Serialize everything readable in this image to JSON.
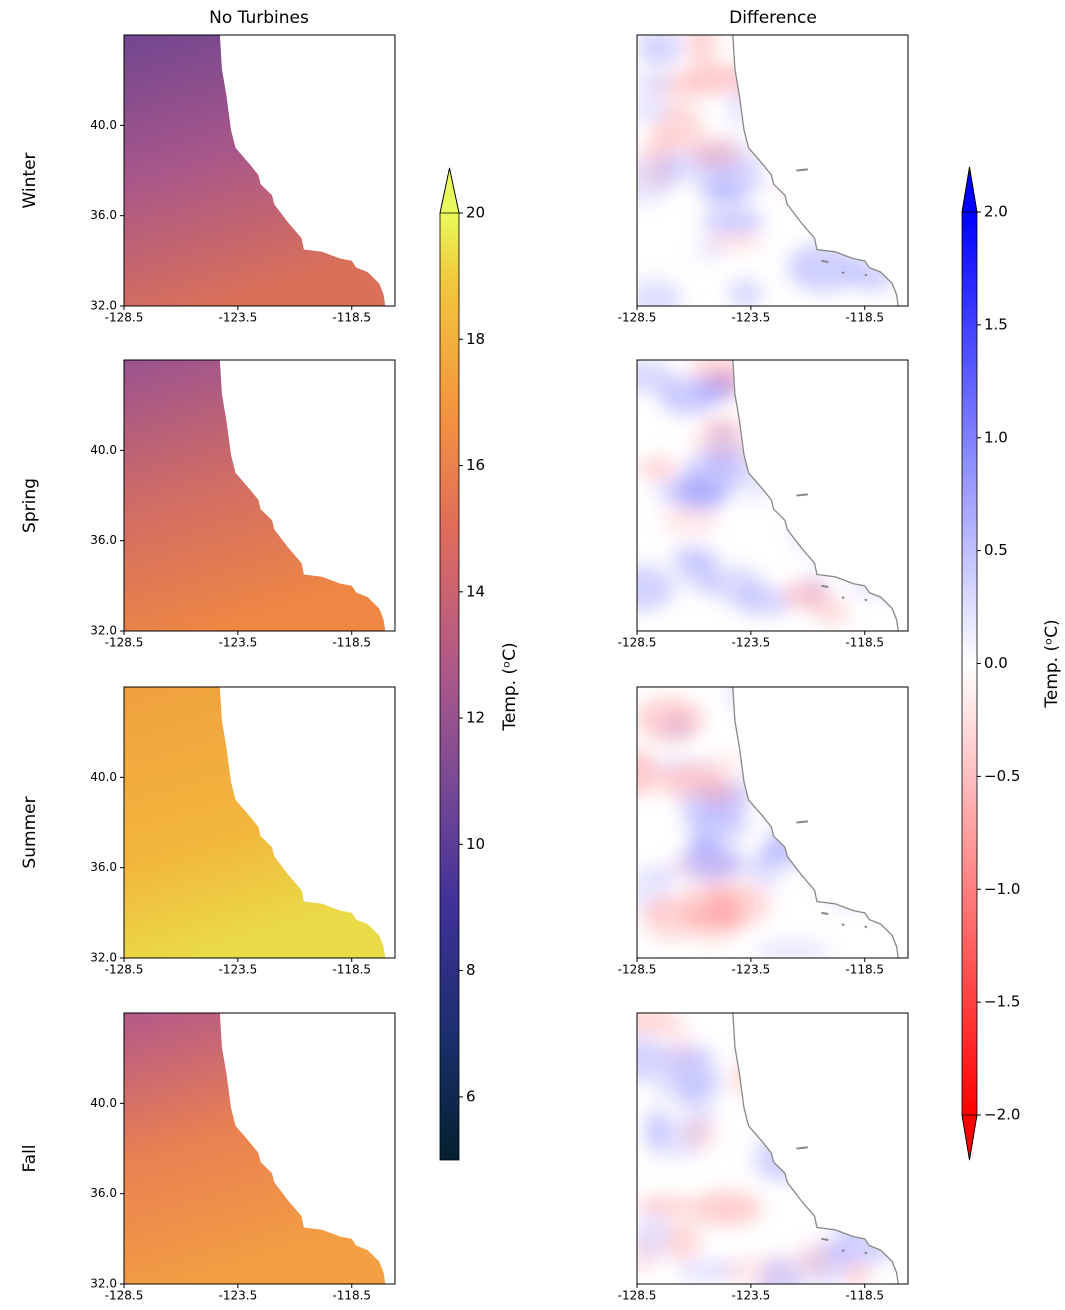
{
  "chart_data": {
    "type": "map",
    "columns": [
      "No Turbines",
      "Difference"
    ],
    "rows": [
      "Winter",
      "Spring",
      "Summer",
      "Fall"
    ],
    "xlim": [
      -128.5,
      -116.6
    ],
    "ylim": [
      32,
      44
    ],
    "xticks": [
      -128.5,
      -123.5,
      -118.5
    ],
    "yticks": [
      {
        "value": 32,
        "label": "32.0"
      },
      {
        "value": 36,
        "label": "36.0"
      },
      {
        "value": 40,
        "label": "40.0"
      }
    ],
    "colorbars": [
      {
        "label": "Temp. (ᵒC)",
        "lim": [
          5,
          20
        ],
        "ticks": [
          6,
          8,
          10,
          12,
          14,
          16,
          18,
          20
        ],
        "extend": "max",
        "colormap": "thermal"
      },
      {
        "label": "Temp. (ᵒC)",
        "lim": [
          -2,
          2
        ],
        "ticks": [
          {
            "value": -2,
            "label": "−2.0"
          },
          {
            "value": -1.5,
            "label": "−1.5"
          },
          {
            "value": -1,
            "label": "−1.0"
          },
          {
            "value": -0.5,
            "label": "−0.5"
          },
          {
            "value": 0,
            "label": "0.0"
          },
          {
            "value": 0.5,
            "label": "0.5"
          },
          {
            "value": 1,
            "label": "1.0"
          },
          {
            "value": 1.5,
            "label": "1.5"
          },
          {
            "value": 2,
            "label": "2.0"
          }
        ],
        "extend": "both",
        "colormap": "bwr_r"
      }
    ]
  }
}
